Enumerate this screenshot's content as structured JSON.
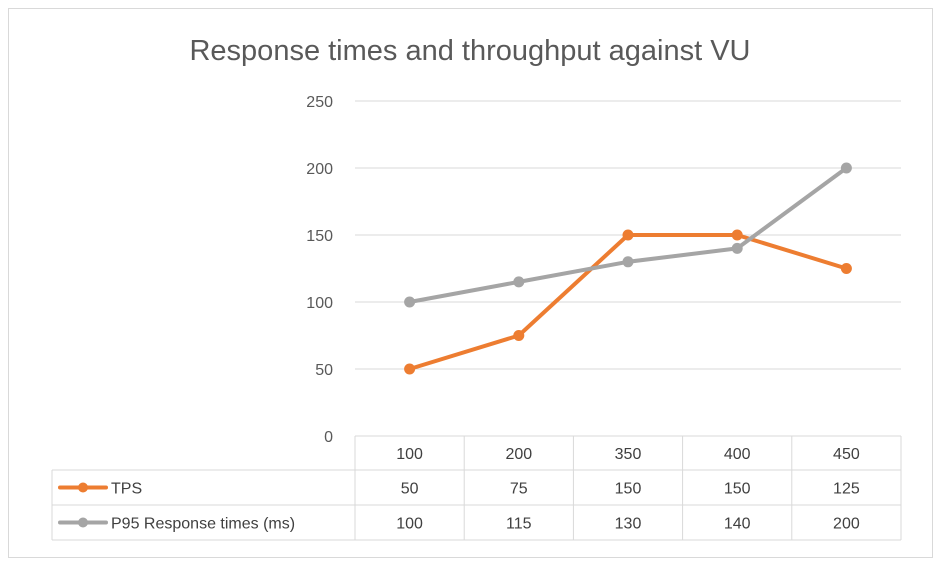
{
  "chart_data": {
    "type": "line",
    "title": "Response times and throughput against VU",
    "categories": [
      "100",
      "200",
      "350",
      "400",
      "450"
    ],
    "ylim": [
      0,
      250
    ],
    "yticks": [
      0,
      50,
      100,
      150,
      200,
      250
    ],
    "grid": true,
    "legend": "data-table",
    "series": [
      {
        "name": "TPS",
        "values": [
          50,
          75,
          150,
          150,
          125
        ],
        "color": "#ED7D31"
      },
      {
        "name": "P95 Response times (ms)",
        "values": [
          100,
          115,
          130,
          140,
          200
        ],
        "color": "#A5A5A5"
      }
    ]
  }
}
